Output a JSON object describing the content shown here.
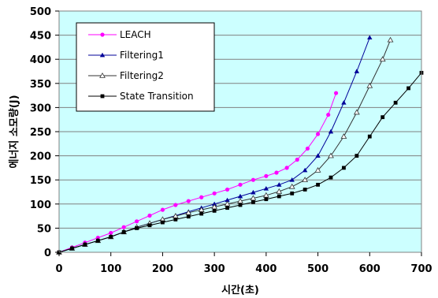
{
  "chart_data": {
    "type": "line",
    "xlabel": "시간(초)",
    "ylabel": "에너지 소모량(J)",
    "xlim": [
      0,
      700
    ],
    "ylim": [
      0,
      500
    ],
    "xticks": [
      "0",
      "100",
      "200",
      "300",
      "400",
      "500",
      "600",
      "700"
    ],
    "yticks": [
      "0",
      "50",
      "100",
      "150",
      "200",
      "250",
      "300",
      "350",
      "400",
      "450",
      "500"
    ],
    "plot_background": "#ccffff",
    "grid": "horizontal",
    "legend_position": "top-left",
    "series": [
      {
        "name": "LEACH",
        "color": "#ff00ff",
        "marker": "circle",
        "x": [
          0,
          25,
          50,
          75,
          100,
          125,
          150,
          175,
          200,
          225,
          250,
          275,
          300,
          325,
          350,
          375,
          400,
          420,
          440,
          460,
          480,
          500,
          520,
          535
        ],
        "y": [
          0,
          10,
          20,
          30,
          40,
          52,
          64,
          76,
          88,
          98,
          106,
          114,
          122,
          130,
          140,
          150,
          158,
          165,
          175,
          192,
          215,
          245,
          285,
          330
        ]
      },
      {
        "name": "Filtering1",
        "color": "#000099",
        "marker": "triangle-filled",
        "x": [
          0,
          25,
          50,
          75,
          100,
          125,
          150,
          175,
          200,
          225,
          250,
          275,
          300,
          325,
          350,
          375,
          400,
          425,
          450,
          475,
          500,
          525,
          550,
          575,
          600
        ],
        "y": [
          0,
          8,
          16,
          24,
          32,
          42,
          52,
          60,
          68,
          76,
          84,
          92,
          100,
          108,
          116,
          124,
          132,
          140,
          150,
          170,
          200,
          250,
          310,
          375,
          445
        ]
      },
      {
        "name": "Filtering2",
        "color": "#333333",
        "marker": "triangle-open",
        "x": [
          0,
          25,
          50,
          75,
          100,
          125,
          150,
          175,
          200,
          225,
          250,
          275,
          300,
          325,
          350,
          375,
          400,
          425,
          450,
          475,
          500,
          525,
          550,
          575,
          600,
          625,
          640
        ],
        "y": [
          0,
          8,
          16,
          24,
          32,
          42,
          52,
          60,
          68,
          75,
          82,
          88,
          94,
          100,
          106,
          112,
          118,
          126,
          136,
          150,
          170,
          200,
          240,
          290,
          345,
          400,
          440
        ]
      },
      {
        "name": "State Transition",
        "color": "#000000",
        "marker": "square",
        "x": [
          0,
          25,
          50,
          75,
          100,
          125,
          150,
          175,
          200,
          225,
          250,
          275,
          300,
          325,
          350,
          375,
          400,
          425,
          450,
          475,
          500,
          525,
          550,
          575,
          600,
          625,
          650,
          675,
          700
        ],
        "y": [
          0,
          8,
          16,
          24,
          32,
          42,
          50,
          56,
          62,
          68,
          74,
          80,
          86,
          92,
          98,
          104,
          110,
          116,
          122,
          130,
          140,
          155,
          175,
          200,
          240,
          280,
          310,
          340,
          372
        ]
      }
    ]
  }
}
